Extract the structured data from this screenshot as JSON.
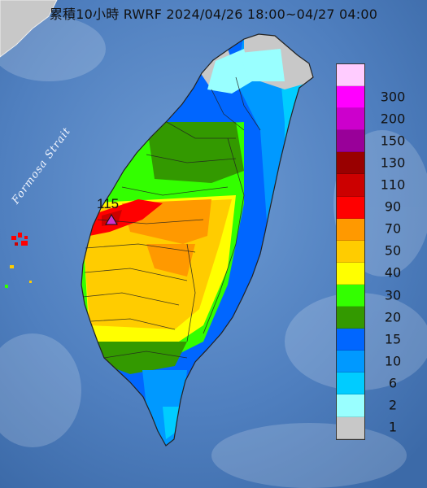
{
  "title": "累積10小時 RWRF 2024/04/26 18:00~04/27 04:00",
  "strait_label": "Formosa Strait",
  "max_station": {
    "value": "115"
  },
  "legend": {
    "levels": [
      {
        "label": "300",
        "color": "#ffccff"
      },
      {
        "label": "200",
        "color": "#ff00ff"
      },
      {
        "label": "150",
        "color": "#cc00cc"
      },
      {
        "label": "130",
        "color": "#990099"
      },
      {
        "label": "110",
        "color": "#990000"
      },
      {
        "label": "90",
        "color": "#cc0000"
      },
      {
        "label": "70",
        "color": "#ff0000"
      },
      {
        "label": "50",
        "color": "#ff9900"
      },
      {
        "label": "40",
        "color": "#ffcc00"
      },
      {
        "label": "30",
        "color": "#ffff00"
      },
      {
        "label": "20",
        "color": "#33ff00"
      },
      {
        "label": "15",
        "color": "#339900"
      },
      {
        "label": "10",
        "color": "#0066ff"
      },
      {
        "label": "6",
        "color": "#0099ff"
      },
      {
        "label": "2",
        "color": "#00ccff"
      },
      {
        "label": "1",
        "color": "#99ffff"
      },
      {
        "label": "",
        "color": "#c8c8c8"
      }
    ]
  },
  "colors": {
    "sea": "#4f7fbf",
    "land_outline": "#222222",
    "marker": "#cc33cc"
  }
}
